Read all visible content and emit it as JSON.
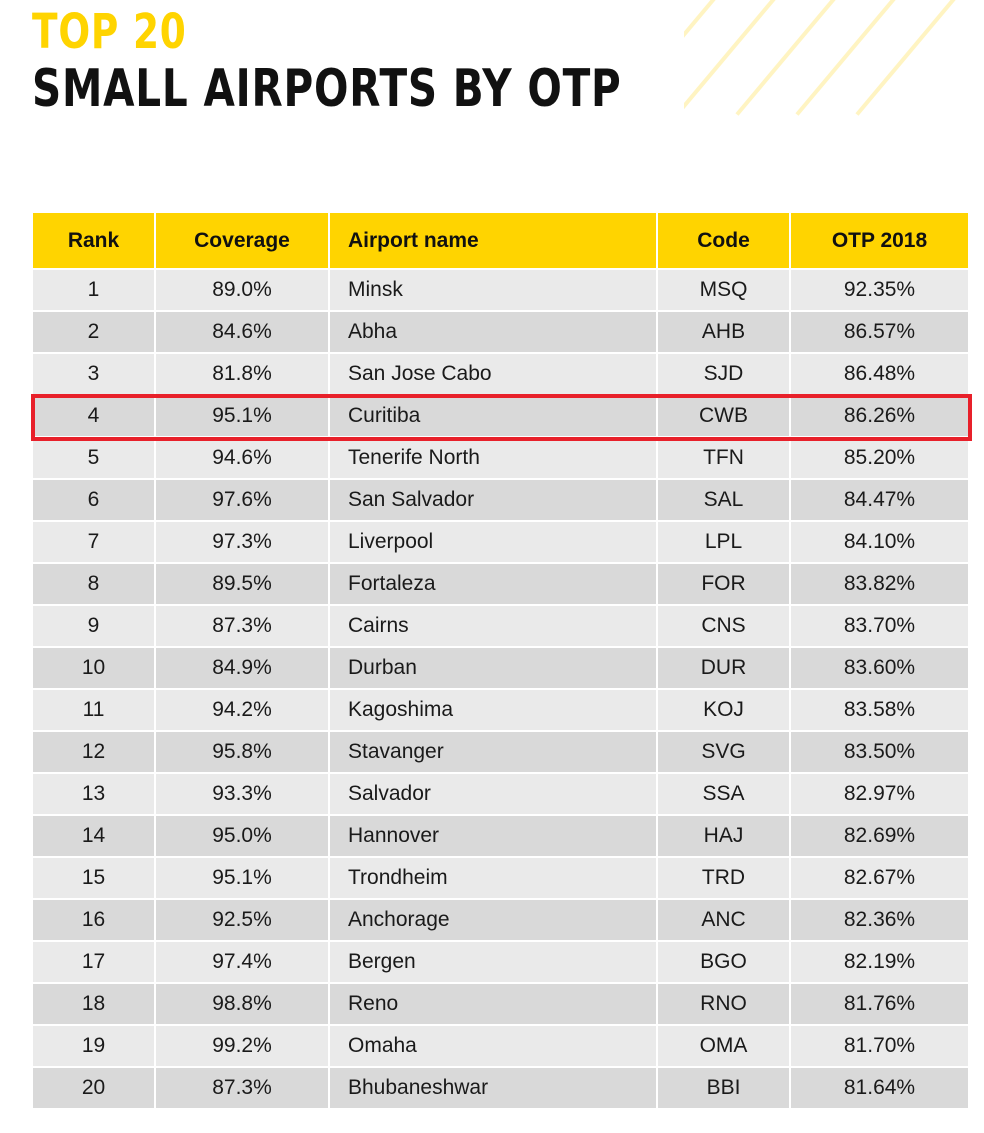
{
  "title": {
    "line1": "TOP 20",
    "line2": "SMALL AIRPORTS BY OTP"
  },
  "colors": {
    "accent": "#ffd400",
    "highlight": "#e8202a",
    "row_light": "#eaeaea",
    "row_dark": "#d9d9d9"
  },
  "table": {
    "headers": {
      "rank": "Rank",
      "coverage": "Coverage",
      "name": "Airport name",
      "code": "Code",
      "otp": "OTP 2018"
    },
    "highlighted_rank": "4",
    "rows": [
      {
        "rank": "1",
        "coverage": "89.0%",
        "name": "Minsk",
        "code": "MSQ",
        "otp": "92.35%"
      },
      {
        "rank": "2",
        "coverage": "84.6%",
        "name": "Abha",
        "code": "AHB",
        "otp": "86.57%"
      },
      {
        "rank": "3",
        "coverage": "81.8%",
        "name": "San Jose Cabo",
        "code": "SJD",
        "otp": "86.48%"
      },
      {
        "rank": "4",
        "coverage": "95.1%",
        "name": "Curitiba",
        "code": "CWB",
        "otp": "86.26%"
      },
      {
        "rank": "5",
        "coverage": "94.6%",
        "name": "Tenerife North",
        "code": "TFN",
        "otp": "85.20%"
      },
      {
        "rank": "6",
        "coverage": "97.6%",
        "name": "San Salvador",
        "code": "SAL",
        "otp": "84.47%"
      },
      {
        "rank": "7",
        "coverage": "97.3%",
        "name": "Liverpool",
        "code": "LPL",
        "otp": "84.10%"
      },
      {
        "rank": "8",
        "coverage": "89.5%",
        "name": "Fortaleza",
        "code": "FOR",
        "otp": "83.82%"
      },
      {
        "rank": "9",
        "coverage": "87.3%",
        "name": "Cairns",
        "code": "CNS",
        "otp": "83.70%"
      },
      {
        "rank": "10",
        "coverage": "84.9%",
        "name": "Durban",
        "code": "DUR",
        "otp": "83.60%"
      },
      {
        "rank": "11",
        "coverage": "94.2%",
        "name": "Kagoshima",
        "code": "KOJ",
        "otp": "83.58%"
      },
      {
        "rank": "12",
        "coverage": "95.8%",
        "name": "Stavanger",
        "code": "SVG",
        "otp": "83.50%"
      },
      {
        "rank": "13",
        "coverage": "93.3%",
        "name": "Salvador",
        "code": "SSA",
        "otp": "82.97%"
      },
      {
        "rank": "14",
        "coverage": "95.0%",
        "name": "Hannover",
        "code": "HAJ",
        "otp": "82.69%"
      },
      {
        "rank": "15",
        "coverage": "95.1%",
        "name": "Trondheim",
        "code": "TRD",
        "otp": "82.67%"
      },
      {
        "rank": "16",
        "coverage": "92.5%",
        "name": "Anchorage",
        "code": "ANC",
        "otp": "82.36%"
      },
      {
        "rank": "17",
        "coverage": "97.4%",
        "name": "Bergen",
        "code": "BGO",
        "otp": "82.19%"
      },
      {
        "rank": "18",
        "coverage": "98.8%",
        "name": "Reno",
        "code": "RNO",
        "otp": "81.76%"
      },
      {
        "rank": "19",
        "coverage": "99.2%",
        "name": "Omaha",
        "code": "OMA",
        "otp": "81.70%"
      },
      {
        "rank": "20",
        "coverage": "87.3%",
        "name": "Bhubaneshwar",
        "code": "BBI",
        "otp": "81.64%"
      }
    ]
  }
}
